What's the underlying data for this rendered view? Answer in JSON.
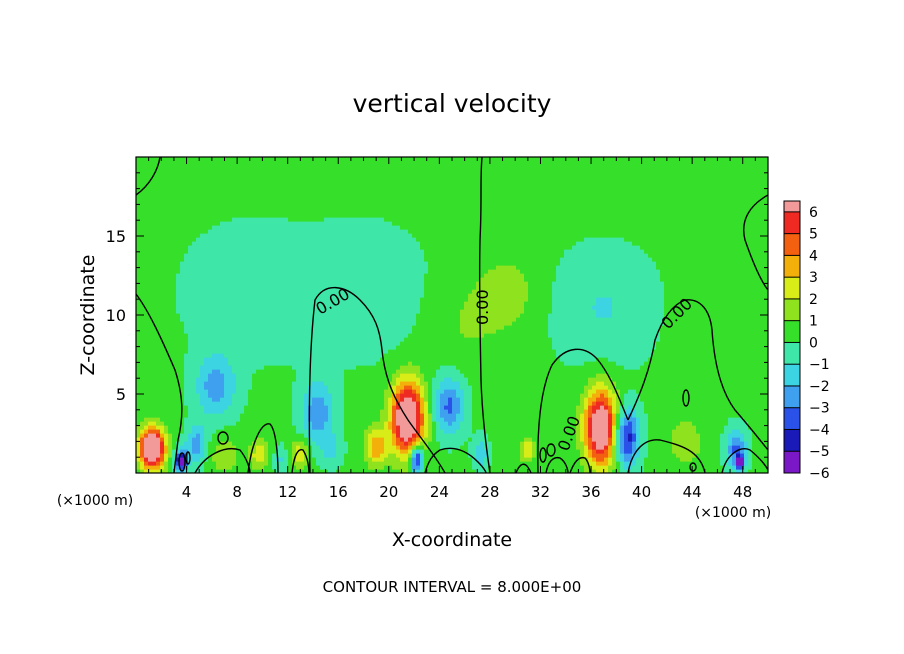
{
  "chart_data": {
    "type": "heatmap",
    "title": "vertical velocity",
    "xlabel": "X-coordinate",
    "ylabel": "Z-coordinate",
    "x_unit_left": "(×1000 m)",
    "x_unit_right": "(×1000 m)",
    "xlim": [
      0,
      50
    ],
    "ylim": [
      0,
      20
    ],
    "x_ticks": [
      4,
      8,
      12,
      16,
      20,
      24,
      28,
      32,
      36,
      40,
      44,
      48
    ],
    "y_ticks": [
      5,
      10,
      15
    ],
    "colorbar": {
      "levels": [
        -6,
        -5,
        -4,
        -3,
        -2,
        -1,
        0,
        1,
        2,
        3,
        4,
        5,
        6
      ],
      "colors": [
        "#7a18c8",
        "#1a1ab8",
        "#2a52e8",
        "#3ea0ee",
        "#3cd4e2",
        "#3ee6a8",
        "#36e02a",
        "#8ee21e",
        "#d8ec18",
        "#f4b00a",
        "#f36010",
        "#ee2a22",
        "#f29a9a"
      ]
    },
    "contour_label": "0.00",
    "footer": "CONTOUR INTERVAL = 8.000E+00",
    "background_color": "#38e02a",
    "features": [
      {
        "x": 1.3,
        "z": 1.6,
        "w": 9,
        "sx": 1.0,
        "sz": 1.3
      },
      {
        "x": 3.6,
        "z": 0.8,
        "w": -6,
        "sx": 0.5,
        "sz": 0.7
      },
      {
        "x": 4.8,
        "z": 1.8,
        "w": -3,
        "sx": 0.8,
        "sz": 1.2
      },
      {
        "x": 6.3,
        "z": 5.5,
        "w": -2.8,
        "sx": 1.6,
        "sz": 2.0
      },
      {
        "x": 7.0,
        "z": 1.2,
        "w": 1.5,
        "sx": 1.2,
        "sz": 1.2
      },
      {
        "x": 9.8,
        "z": 1.2,
        "w": 2.5,
        "sx": 0.8,
        "sz": 0.9
      },
      {
        "x": 11.4,
        "z": 0.9,
        "w": -1.5,
        "sx": 0.6,
        "sz": 0.8
      },
      {
        "x": 13.0,
        "z": 1.3,
        "w": 2.5,
        "sx": 0.7,
        "sz": 0.9
      },
      {
        "x": 14.4,
        "z": 3.8,
        "w": -3,
        "sx": 1.3,
        "sz": 2.0
      },
      {
        "x": 15.5,
        "z": 1.5,
        "w": -1.5,
        "sx": 0.8,
        "sz": 1.0
      },
      {
        "x": 19.0,
        "z": 1.7,
        "w": 3.5,
        "sx": 0.9,
        "sz": 1.2
      },
      {
        "x": 21.5,
        "z": 3.5,
        "w": 8.5,
        "sx": 1.3,
        "sz": 2.3
      },
      {
        "x": 22.2,
        "z": 0.9,
        "w": -6,
        "sx": 0.5,
        "sz": 0.9
      },
      {
        "x": 24.8,
        "z": 4.3,
        "w": -3.5,
        "sx": 1.2,
        "sz": 1.8
      },
      {
        "x": 27.3,
        "z": 1.3,
        "w": -2,
        "sx": 0.6,
        "sz": 1.0
      },
      {
        "x": 31.0,
        "z": 1.5,
        "w": 2.5,
        "sx": 0.6,
        "sz": 0.8
      },
      {
        "x": 36.8,
        "z": 2.9,
        "w": 8,
        "sx": 1.3,
        "sz": 2.4
      },
      {
        "x": 38.8,
        "z": 2.3,
        "w": -5,
        "sx": 1.0,
        "sz": 1.8
      },
      {
        "x": 43.5,
        "z": 2.0,
        "w": 1.5,
        "sx": 1.3,
        "sz": 1.6
      },
      {
        "x": 47.5,
        "z": 1.5,
        "w": -3.5,
        "sx": 0.8,
        "sz": 1.3
      },
      {
        "x": 47.8,
        "z": 0.7,
        "w": -6,
        "sx": 0.3,
        "sz": 0.4
      },
      {
        "x": 37.0,
        "z": 10.5,
        "w": -1.3,
        "sx": 4.0,
        "sz": 3.5
      },
      {
        "x": 18.0,
        "z": 11.5,
        "w": -1.0,
        "sx": 5.0,
        "sz": 4.0
      },
      {
        "x": 9.0,
        "z": 11.5,
        "w": -1.0,
        "sx": 5.0,
        "sz": 4.0
      },
      {
        "x": 26.0,
        "z": 9.5,
        "w": 0.8,
        "sx": 3.0,
        "sz": 3.0
      },
      {
        "x": 29.5,
        "z": 11.5,
        "w": 1.2,
        "sx": 2.5,
        "sz": 2.5
      },
      {
        "x": 45.5,
        "z": 9.5,
        "w": 0.6,
        "sx": 2.5,
        "sz": 2.5
      }
    ]
  }
}
